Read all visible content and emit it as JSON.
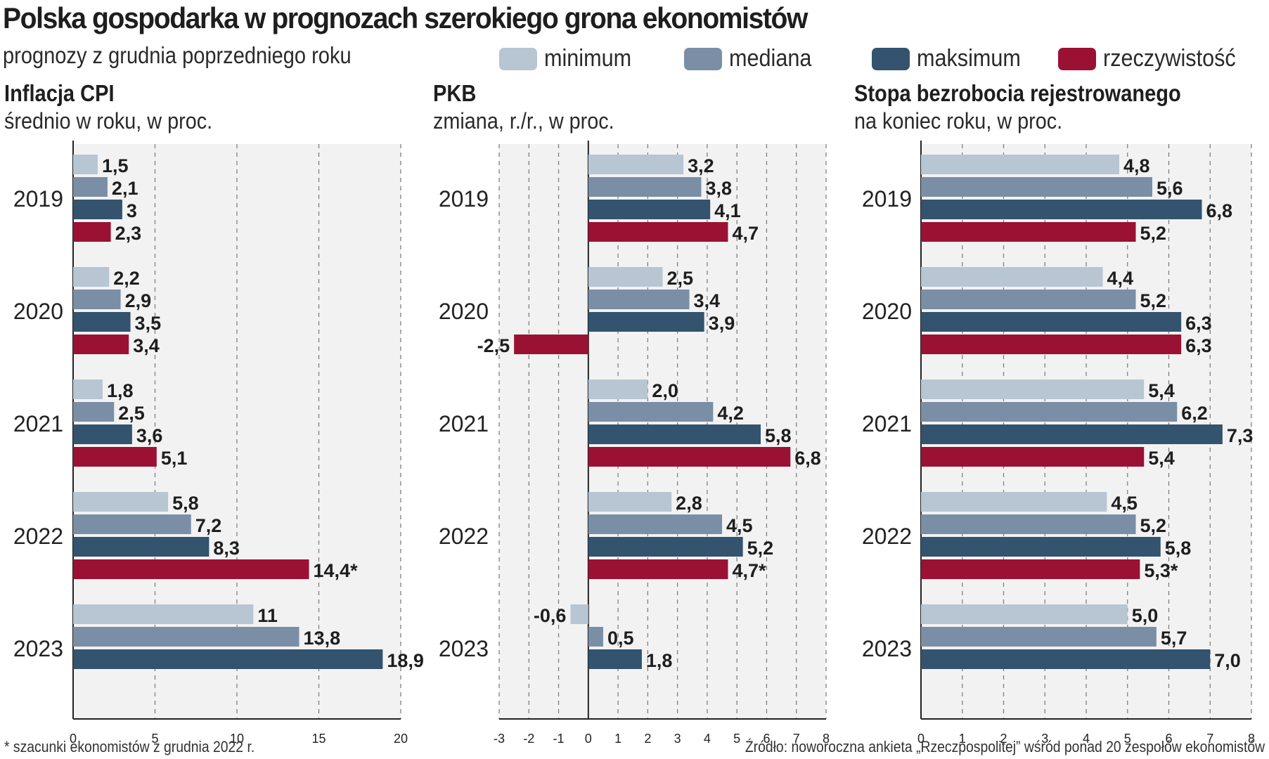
{
  "title": "Polska gospodarka w prognozach szerokiego grona ekonomistów",
  "subtitle": "prognozy z grudnia poprzedniego roku",
  "legend": [
    {
      "label": "minimum",
      "color": "#b8c5d3"
    },
    {
      "label": "mediana",
      "color": "#7a8fa6"
    },
    {
      "label": "maksimum",
      "color": "#33536e"
    },
    {
      "label": "rzeczywistość",
      "color": "#9b1133"
    }
  ],
  "footnote": "* szacunki ekonomistów z grudnia 2022 r.",
  "source": "Źródło: noworoczna ankieta „Rzeczpospolitej” wśród ponad 20 zespołów ekonomistów",
  "chart_data": [
    {
      "type": "bar",
      "orientation": "horizontal",
      "title": "Inflacja CPI",
      "subtitle": "średnio w roku, w proc.",
      "categories": [
        "2019",
        "2020",
        "2021",
        "2022",
        "2023"
      ],
      "xlim": [
        0,
        20
      ],
      "xticks": [
        0,
        5,
        10,
        15,
        20
      ],
      "grid": true,
      "series": [
        {
          "name": "minimum",
          "values": [
            1.5,
            2.2,
            1.8,
            5.8,
            11
          ],
          "labels": [
            "1,5",
            "2,2",
            "1,8",
            "5,8",
            "11"
          ]
        },
        {
          "name": "mediana",
          "values": [
            2.1,
            2.9,
            2.5,
            7.2,
            13.8
          ],
          "labels": [
            "2,1",
            "2,9",
            "2,5",
            "7,2",
            "13,8"
          ]
        },
        {
          "name": "maksimum",
          "values": [
            3,
            3.5,
            3.6,
            8.3,
            18.9
          ],
          "labels": [
            "3",
            "3,5",
            "3,6",
            "8,3",
            "18,9"
          ]
        },
        {
          "name": "rzeczywistość",
          "values": [
            2.3,
            3.4,
            5.1,
            14.4,
            null
          ],
          "labels": [
            "2,3",
            "3,4",
            "5,1",
            "14,4*",
            ""
          ]
        }
      ]
    },
    {
      "type": "bar",
      "orientation": "horizontal",
      "title": "PKB",
      "subtitle": "zmiana, r./r., w proc.",
      "categories": [
        "2019",
        "2020",
        "2021",
        "2022",
        "2023"
      ],
      "xlim": [
        -3,
        8
      ],
      "xticks": [
        -3,
        -2,
        -1,
        0,
        1,
        2,
        3,
        4,
        5,
        6,
        7,
        8
      ],
      "grid": true,
      "series": [
        {
          "name": "minimum",
          "values": [
            3.2,
            2.5,
            2.0,
            2.8,
            -0.6
          ],
          "labels": [
            "3,2",
            "2,5",
            "2,0",
            "2,8",
            "-0,6"
          ]
        },
        {
          "name": "mediana",
          "values": [
            3.8,
            3.4,
            4.2,
            4.5,
            0.5
          ],
          "labels": [
            "3,8",
            "3,4",
            "4,2",
            "4,5",
            "0,5"
          ]
        },
        {
          "name": "maksimum",
          "values": [
            4.1,
            3.9,
            5.8,
            5.2,
            1.8
          ],
          "labels": [
            "4,1",
            "3,9",
            "5,8",
            "5,2",
            "1,8"
          ]
        },
        {
          "name": "rzeczywistość",
          "values": [
            4.7,
            -2.5,
            6.8,
            4.7,
            null
          ],
          "labels": [
            "4,7",
            "-2,5",
            "6,8",
            "4,7*",
            ""
          ]
        }
      ]
    },
    {
      "type": "bar",
      "orientation": "horizontal",
      "title": "Stopa bezrobocia rejestrowanego",
      "subtitle": "na koniec roku, w proc.",
      "categories": [
        "2019",
        "2020",
        "2021",
        "2022",
        "2023"
      ],
      "xlim": [
        0,
        8
      ],
      "xticks": [
        0,
        1,
        2,
        3,
        4,
        5,
        6,
        7,
        8
      ],
      "grid": true,
      "series": [
        {
          "name": "minimum",
          "values": [
            4.8,
            4.4,
            5.4,
            4.5,
            5.0
          ],
          "labels": [
            "4,8",
            "4,4",
            "5,4",
            "4,5",
            "5,0"
          ]
        },
        {
          "name": "mediana",
          "values": [
            5.6,
            5.2,
            6.2,
            5.2,
            5.7
          ],
          "labels": [
            "5,6",
            "5,2",
            "6,2",
            "5,2",
            "5,7"
          ]
        },
        {
          "name": "maksimum",
          "values": [
            6.8,
            6.3,
            7.3,
            5.8,
            7.0
          ],
          "labels": [
            "6,8",
            "6,3",
            "7,3",
            "5,8",
            "7,0"
          ]
        },
        {
          "name": "rzeczywistość",
          "values": [
            5.2,
            6.3,
            5.4,
            5.3,
            null
          ],
          "labels": [
            "5,2",
            "6,3",
            "5,4",
            "5,3*",
            ""
          ]
        }
      ]
    }
  ]
}
